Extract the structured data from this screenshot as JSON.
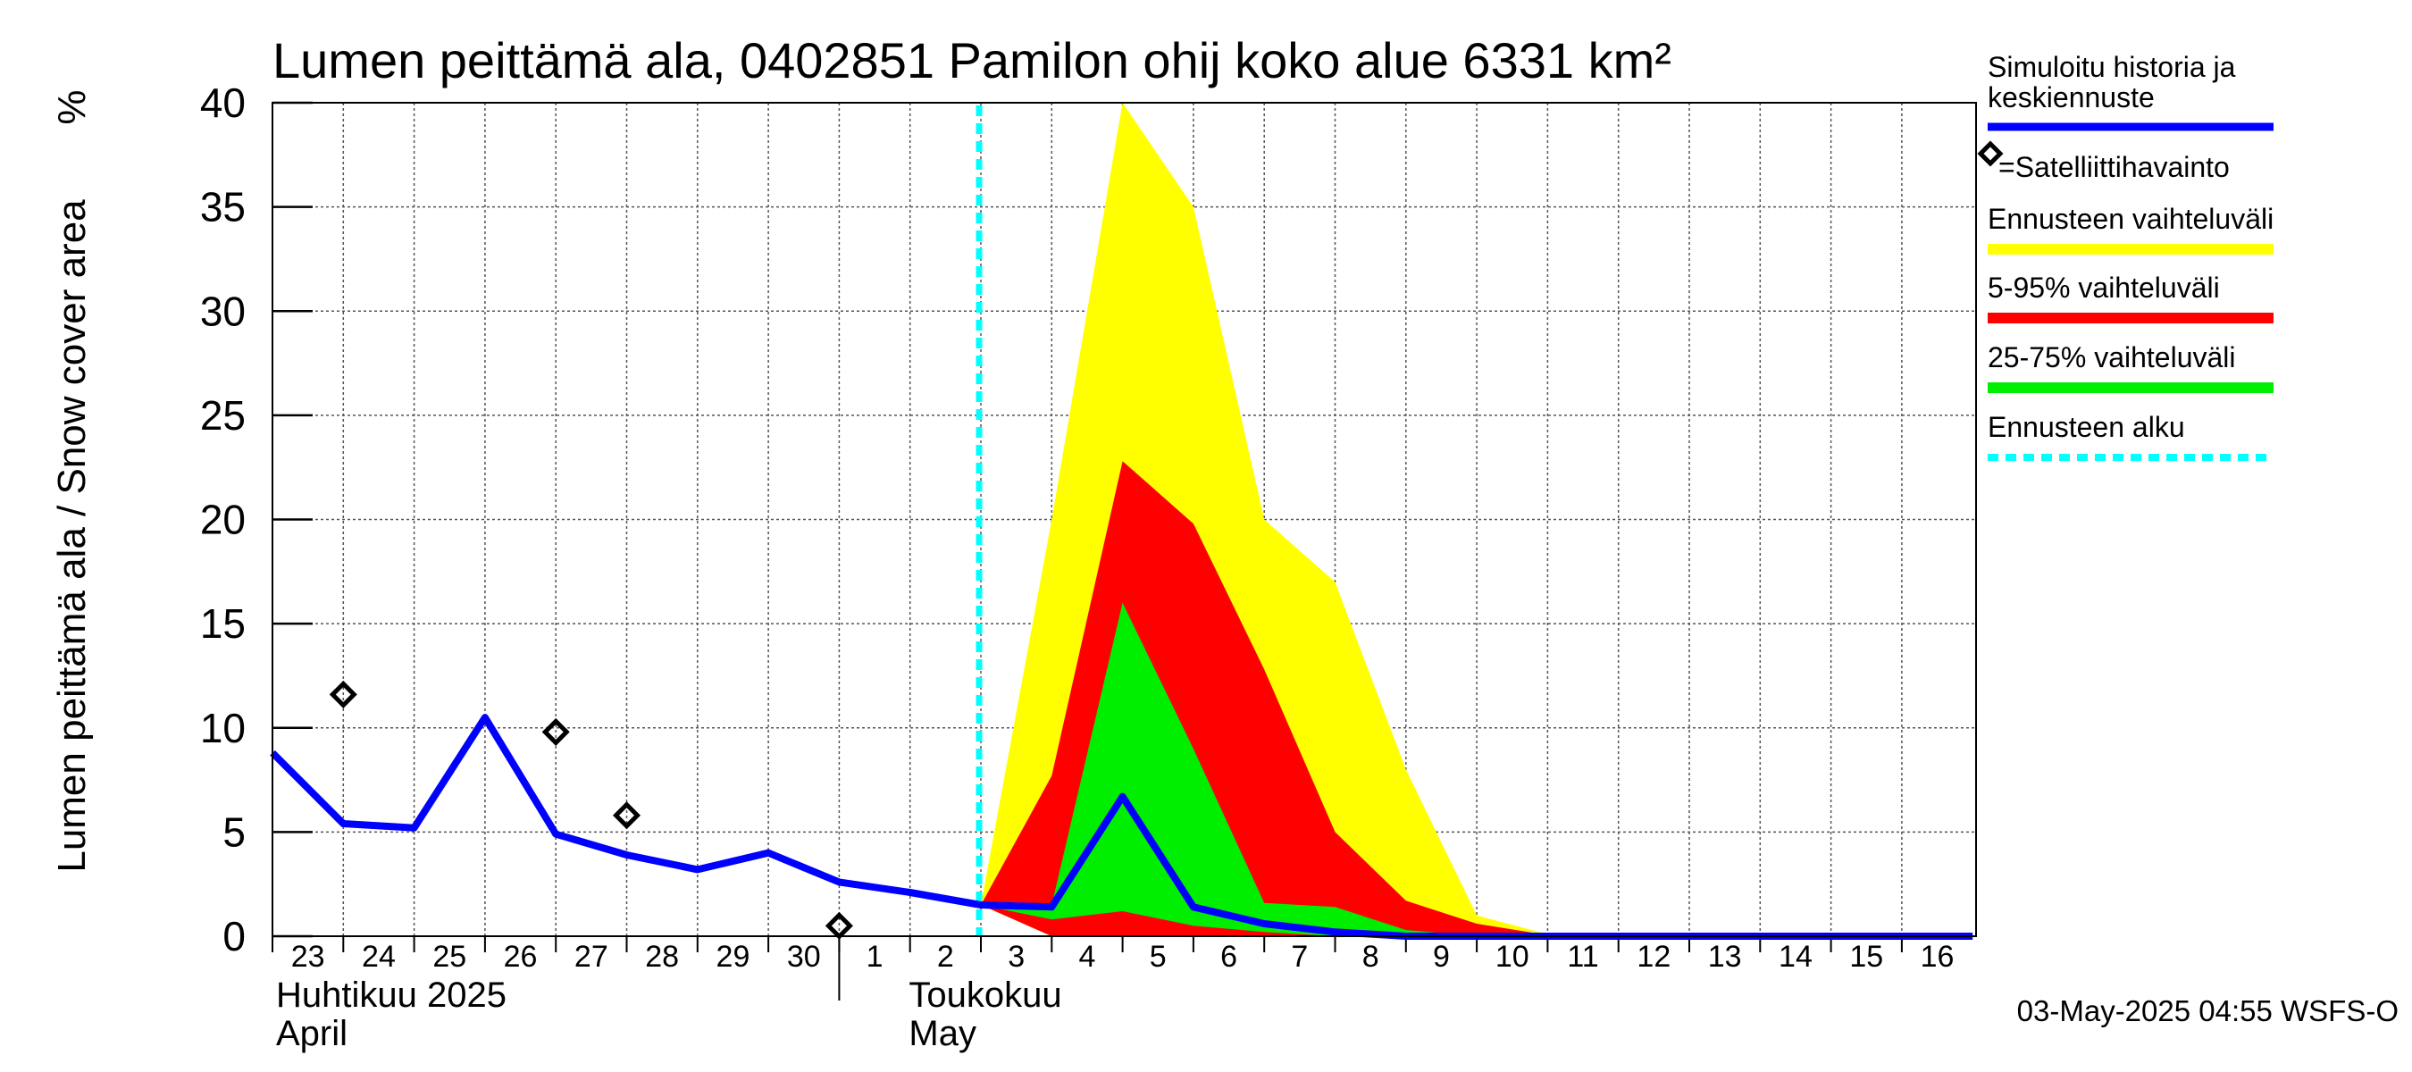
{
  "chart_data": {
    "type": "area",
    "title": "Lumen peittämä ala, 0402851 Pamilon ohij koko alue 6331 km²",
    "ylabel": "Lumen peittämä ala / Snow cover area",
    "yunit": "%",
    "ylim": [
      0,
      40
    ],
    "yticks": [
      0,
      5,
      10,
      15,
      20,
      25,
      30,
      35,
      40
    ],
    "grid": true,
    "x_day_labels": [
      "23",
      "24",
      "25",
      "26",
      "27",
      "28",
      "29",
      "30",
      "1",
      "2",
      "3",
      "4",
      "5",
      "6",
      "7",
      "8",
      "9",
      "10",
      "11",
      "12",
      "13",
      "14",
      "15",
      "16"
    ],
    "month_labels": [
      {
        "line1": "Huhtikuu  2025",
        "line2": "April"
      },
      {
        "line1": "Toukokuu",
        "line2": "May"
      }
    ],
    "forecast_start": "2025-05-03",
    "series": [
      {
        "name": "Simuloitu historia ja keskiennuste",
        "color": "#0000ff",
        "x": [
          "2025-04-23",
          "2025-04-24",
          "2025-04-25",
          "2025-04-26",
          "2025-04-27",
          "2025-04-28",
          "2025-04-29",
          "2025-04-30",
          "2025-05-01",
          "2025-05-02",
          "2025-05-03",
          "2025-05-04",
          "2025-05-05",
          "2025-05-06",
          "2025-05-07",
          "2025-05-08",
          "2025-05-09",
          "2025-05-10",
          "2025-05-11",
          "2025-05-12",
          "2025-05-13",
          "2025-05-14",
          "2025-05-15",
          "2025-05-16",
          "2025-05-17"
        ],
        "values": [
          8.8,
          5.4,
          5.2,
          10.5,
          4.9,
          3.9,
          3.2,
          4.0,
          2.6,
          2.1,
          1.5,
          1.4,
          6.7,
          1.4,
          0.6,
          0.2,
          0.0,
          0.0,
          0.0,
          0.0,
          0.0,
          0.0,
          0.0,
          0.0,
          0.0
        ]
      },
      {
        "name": "=Satelliittihavainto",
        "type": "scatter",
        "x": [
          "2025-04-24",
          "2025-04-27",
          "2025-04-28",
          "2025-05-01"
        ],
        "values": [
          11.6,
          9.8,
          5.8,
          0.5
        ]
      }
    ],
    "bands": [
      {
        "name": "Ennusteen vaihteluväli",
        "color": "#ffff00",
        "x": [
          "2025-05-03",
          "2025-05-04",
          "2025-05-05",
          "2025-05-06",
          "2025-05-07",
          "2025-05-08",
          "2025-05-09",
          "2025-05-10",
          "2025-05-11",
          "2025-05-12"
        ],
        "upper": [
          1.5,
          20,
          40,
          35,
          20,
          17,
          8,
          1,
          0.1,
          0
        ],
        "lower": [
          1.5,
          0,
          0,
          0,
          0,
          0,
          0,
          0,
          0,
          0
        ]
      },
      {
        "name": "5-95% vaihteluväli",
        "color": "#ff0000",
        "x": [
          "2025-05-03",
          "2025-05-04",
          "2025-05-05",
          "2025-05-06",
          "2025-05-07",
          "2025-05-08",
          "2025-05-09",
          "2025-05-10",
          "2025-05-11",
          "2025-05-12"
        ],
        "upper": [
          1.5,
          7.7,
          22.8,
          19.8,
          12.8,
          5.0,
          1.7,
          0.6,
          0.05,
          0
        ],
        "lower": [
          1.5,
          0,
          0,
          0,
          0,
          0,
          0,
          0,
          0,
          0
        ]
      },
      {
        "name": "25-75% vaihteluväli",
        "color": "#00ee00",
        "x": [
          "2025-05-03",
          "2025-05-04",
          "2025-05-05",
          "2025-05-06",
          "2025-05-07",
          "2025-05-08",
          "2025-05-09",
          "2025-05-10",
          "2025-05-11",
          "2025-05-12"
        ],
        "upper": [
          1.5,
          1.5,
          16.0,
          9.0,
          1.6,
          1.4,
          0.3,
          0,
          0,
          0
        ],
        "lower": [
          1.5,
          0.8,
          1.2,
          0.5,
          0.2,
          0,
          0,
          0,
          0,
          0
        ]
      }
    ],
    "legend": {
      "placement": "right",
      "items": [
        {
          "label": "Simuloitu historia ja keskiennuste",
          "color": "#0000ff",
          "style": "line"
        },
        {
          "label": "=Satelliittihavainto",
          "color": "#000000",
          "style": "diamond"
        },
        {
          "label": "Ennusteen vaihteluväli",
          "color": "#ffff00",
          "style": "line"
        },
        {
          "label": "5-95% vaihteluväli",
          "color": "#ff0000",
          "style": "line"
        },
        {
          "label": "25-75% vaihteluväli",
          "color": "#00ee00",
          "style": "line"
        },
        {
          "label": "Ennusteen alku",
          "color": "#00ffff",
          "style": "dashed"
        }
      ]
    }
  },
  "footer": "03-May-2025 04:55 WSFS-O"
}
